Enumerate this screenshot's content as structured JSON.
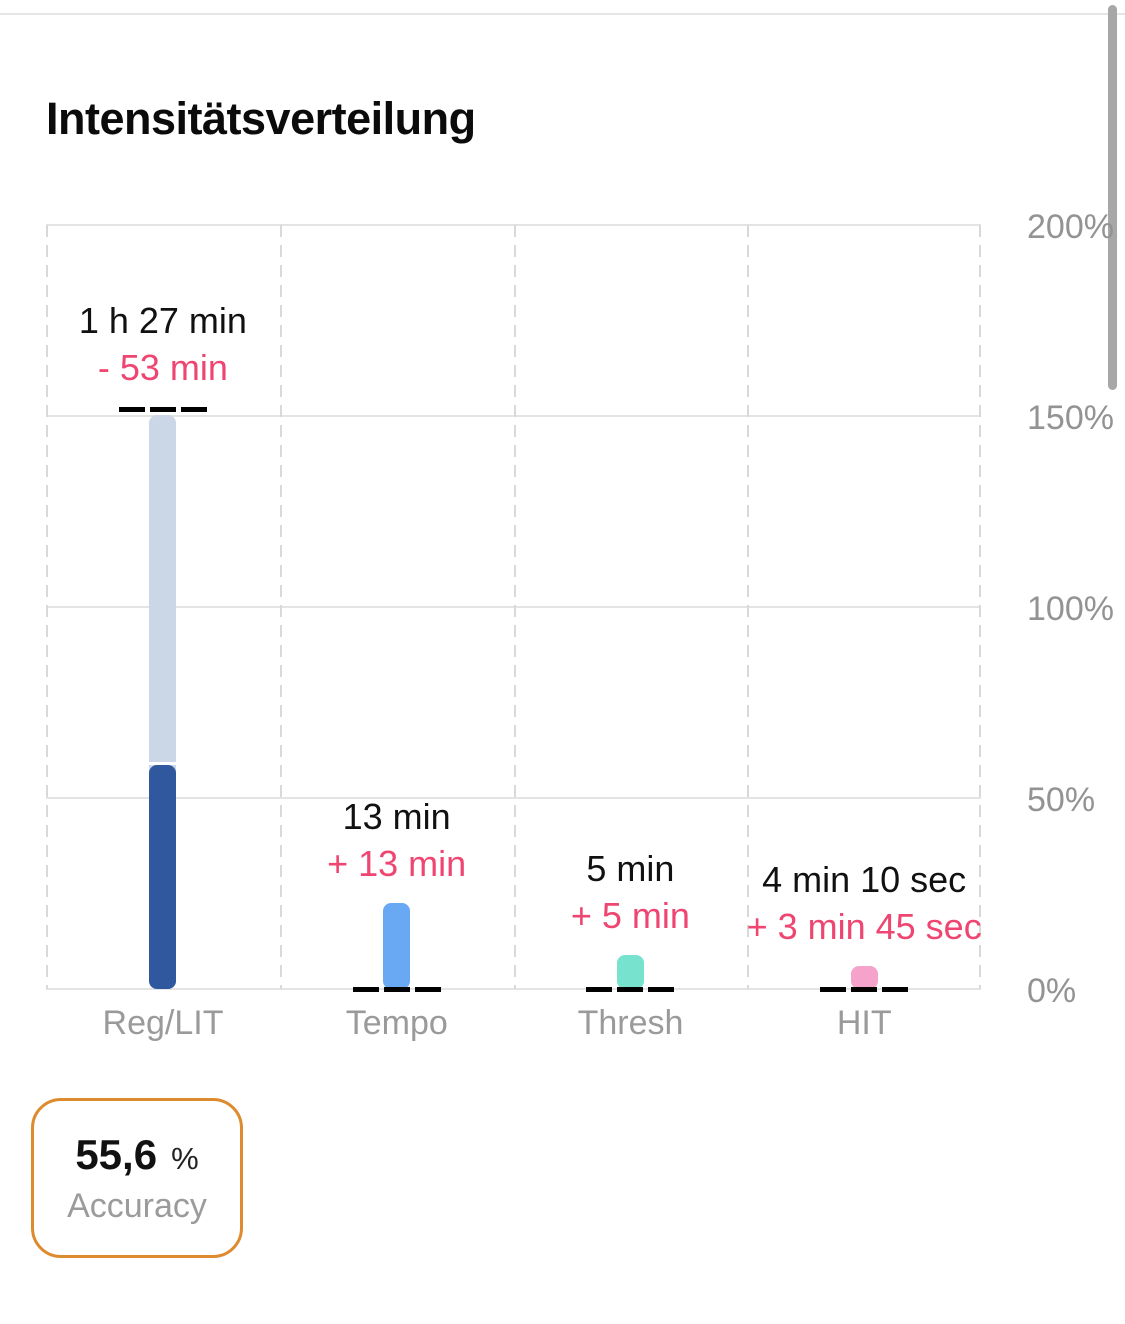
{
  "title": "Intensitätsverteilung",
  "accuracy": {
    "value": "55,6",
    "unit": "%",
    "label": "Accuracy"
  },
  "colors": {
    "accent_orange": "#de8a2e",
    "delta_text": "#ee4571",
    "target_marker": "#000000",
    "axis_text": "#9a9a9a",
    "planned_fill": "#cbd7e7"
  },
  "chart_data": {
    "type": "bar",
    "title": "Intensitätsverteilung",
    "xlabel": "",
    "ylabel": "",
    "y_axis": {
      "min": 0,
      "max": 200,
      "step": 50,
      "unit": "%",
      "tick_labels": [
        "0%",
        "50%",
        "100%",
        "150%",
        "200%"
      ]
    },
    "grid": "on",
    "legend": "none",
    "categories": [
      "Reg/LIT",
      "Tempo",
      "Thresh",
      "HIT"
    ],
    "columns": [
      {
        "category": "Reg/LIT",
        "planned_pct": 150.2,
        "actual_pct": 58.6,
        "target_marker_pct": 151.6,
        "label_value": "1 h 27 min",
        "label_delta": "- 53 min",
        "planned_color": "#cbd7e7",
        "actual_color": "#30589f"
      },
      {
        "category": "Tempo",
        "planned_pct": 0,
        "actual_pct": 22.5,
        "target_marker_pct": 0,
        "label_value": "13 min",
        "label_delta": "+ 13 min",
        "planned_color": null,
        "actual_color": "#69a8f2"
      },
      {
        "category": "Thresh",
        "planned_pct": 0,
        "actual_pct": 8.9,
        "target_marker_pct": 0,
        "label_value": "5 min",
        "label_delta": "+ 5 min",
        "planned_color": null,
        "actual_color": "#77e2ce"
      },
      {
        "category": "HIT",
        "planned_pct": 0,
        "actual_pct": 6.0,
        "target_marker_pct": 0,
        "label_value": "4 min 10 sec",
        "label_delta": "+ 3 min 45 sec",
        "planned_color": null,
        "actual_color": "#f5a3ca"
      }
    ]
  }
}
